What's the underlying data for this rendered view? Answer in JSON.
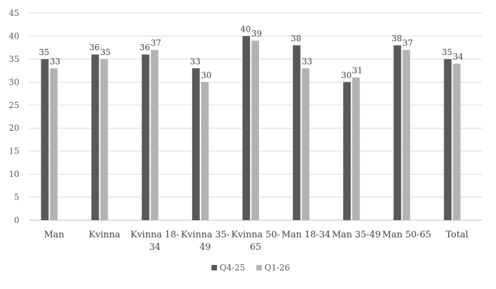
{
  "chart_data": {
    "type": "bar",
    "categories": [
      [
        "Man"
      ],
      [
        "Kvinna"
      ],
      [
        "Kvinna 18-",
        "34"
      ],
      [
        "Kvinna 35-",
        "49"
      ],
      [
        "Kvinna 50-",
        "65"
      ],
      [
        "Man 18-34"
      ],
      [
        "Man 35-49"
      ],
      [
        "Man 50-65"
      ],
      [
        "Total"
      ]
    ],
    "series": [
      {
        "name": "Q4-25",
        "color": "#595959",
        "values": [
          35,
          36,
          36,
          33,
          40,
          38,
          30,
          38,
          35
        ]
      },
      {
        "name": "Q1-26",
        "color": "#b3b3b3",
        "values": [
          33,
          35,
          37,
          30,
          39,
          33,
          31,
          37,
          34
        ]
      }
    ],
    "ylim": [
      0,
      45
    ],
    "yticks": [
      0,
      5,
      10,
      15,
      20,
      25,
      30,
      35,
      40,
      45
    ],
    "grid": true,
    "legend_position": "bottom",
    "title": "",
    "xlabel": "",
    "ylabel": ""
  }
}
